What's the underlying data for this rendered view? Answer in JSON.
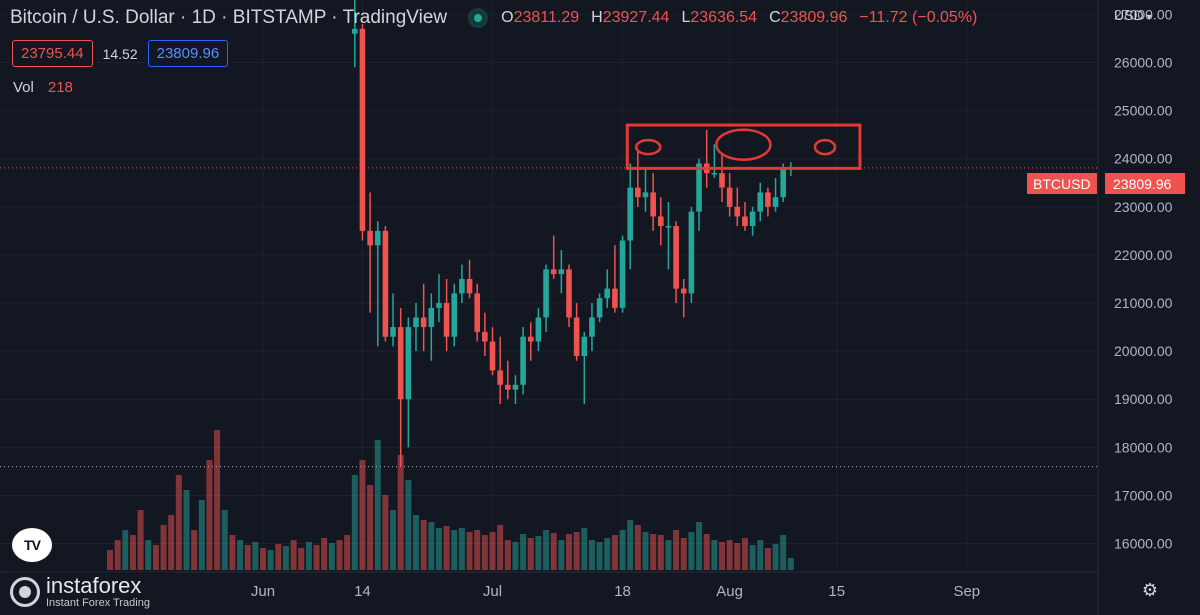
{
  "header": {
    "title": "Bitcoin / U.S. Dollar · 1D · BITSTAMP · TradingView",
    "ohlc": {
      "open_label": "O",
      "open": "23811.29",
      "high_label": "H",
      "high": "23927.44",
      "low_label": "L",
      "low": "23636.54",
      "close_label": "C",
      "close": "23809.96",
      "change": "−11.72 (−0.05%)"
    }
  },
  "trade": {
    "sell": "23795.44",
    "spread": "14.52",
    "buy": "23809.96"
  },
  "volume": {
    "label": "Vol",
    "value": "218"
  },
  "axis": {
    "currency": "USD"
  },
  "last_price": {
    "symbol": "BTCUSD",
    "price": "23809.96"
  },
  "watermark": {
    "name": "instaforex",
    "tagline": "Instant Forex Trading"
  },
  "icons": [
    "status-dot-icon",
    "chevron-down-icon",
    "tradingview-logo-icon",
    "instaforex-logo-icon",
    "gear-icon"
  ],
  "colors": {
    "up": "#26a69a",
    "down": "#ef5350",
    "background": "#131722",
    "annotation": "#e53935"
  },
  "chart_data": {
    "type": "candlestick",
    "timeframe": "1D",
    "y_ticks": [
      16000,
      17000,
      18000,
      19000,
      20000,
      21000,
      22000,
      23000,
      24000,
      25000,
      26000,
      27000
    ],
    "ylim": [
      15450,
      27300
    ],
    "x_ticks": [
      {
        "label": "Jun",
        "day": 0
      },
      {
        "label": "14",
        "day": 13
      },
      {
        "label": "Jul",
        "day": 30
      },
      {
        "label": "18",
        "day": 47
      },
      {
        "label": "Aug",
        "day": 61
      },
      {
        "label": "15",
        "day": 75
      },
      {
        "label": "Sep",
        "day": 92
      }
    ],
    "last_price_line": 23810,
    "low_reference_line": 17600,
    "resistance_zone": {
      "from_day": 45,
      "to_day": 63,
      "low": 23800,
      "high": 24700
    },
    "highlighted_tops": [
      {
        "day": 48,
        "price": 24200
      },
      {
        "day": 56,
        "price": 24250
      },
      {
        "day": 63,
        "price": 24200
      }
    ],
    "candles": [
      {
        "day": 12,
        "o": 26600,
        "h": 27600,
        "l": 25900,
        "c": 26700,
        "v": 95
      },
      {
        "day": 13,
        "o": 26700,
        "h": 26800,
        "l": 22300,
        "c": 22500,
        "v": 110
      },
      {
        "day": 14,
        "o": 22500,
        "h": 23300,
        "l": 20800,
        "c": 22200,
        "v": 85
      },
      {
        "day": 15,
        "o": 22200,
        "h": 22700,
        "l": 20100,
        "c": 22500,
        "v": 130
      },
      {
        "day": 16,
        "o": 22500,
        "h": 22600,
        "l": 20200,
        "c": 20300,
        "v": 75
      },
      {
        "day": 17,
        "o": 20300,
        "h": 21200,
        "l": 20100,
        "c": 20500,
        "v": 60
      },
      {
        "day": 18,
        "o": 20500,
        "h": 20900,
        "l": 17600,
        "c": 19000,
        "v": 115
      },
      {
        "day": 19,
        "o": 19000,
        "h": 20700,
        "l": 18000,
        "c": 20500,
        "v": 90
      },
      {
        "day": 20,
        "o": 20500,
        "h": 21000,
        "l": 20000,
        "c": 20700,
        "v": 55
      },
      {
        "day": 21,
        "o": 20700,
        "h": 21400,
        "l": 20000,
        "c": 20500,
        "v": 50
      },
      {
        "day": 22,
        "o": 20500,
        "h": 21200,
        "l": 19800,
        "c": 20900,
        "v": 48
      },
      {
        "day": 23,
        "o": 20900,
        "h": 21600,
        "l": 20600,
        "c": 21000,
        "v": 42
      },
      {
        "day": 24,
        "o": 21000,
        "h": 21500,
        "l": 20000,
        "c": 20300,
        "v": 44
      },
      {
        "day": 25,
        "o": 20300,
        "h": 21400,
        "l": 20100,
        "c": 21200,
        "v": 40
      },
      {
        "day": 26,
        "o": 21200,
        "h": 21800,
        "l": 21000,
        "c": 21500,
        "v": 42
      },
      {
        "day": 27,
        "o": 21500,
        "h": 21900,
        "l": 21100,
        "c": 21200,
        "v": 38
      },
      {
        "day": 28,
        "o": 21200,
        "h": 21400,
        "l": 20200,
        "c": 20400,
        "v": 40
      },
      {
        "day": 29,
        "o": 20400,
        "h": 20800,
        "l": 19900,
        "c": 20200,
        "v": 35
      },
      {
        "day": 30,
        "o": 20200,
        "h": 20500,
        "l": 19500,
        "c": 19600,
        "v": 38
      },
      {
        "day": 31,
        "o": 19600,
        "h": 20300,
        "l": 18900,
        "c": 19300,
        "v": 45
      },
      {
        "day": 32,
        "o": 19300,
        "h": 19800,
        "l": 19000,
        "c": 19200,
        "v": 30
      },
      {
        "day": 33,
        "o": 19200,
        "h": 19500,
        "l": 18900,
        "c": 19300,
        "v": 28
      },
      {
        "day": 34,
        "o": 19300,
        "h": 20500,
        "l": 19100,
        "c": 20300,
        "v": 36
      },
      {
        "day": 35,
        "o": 20300,
        "h": 20600,
        "l": 19800,
        "c": 20200,
        "v": 32
      },
      {
        "day": 36,
        "o": 20200,
        "h": 20900,
        "l": 20000,
        "c": 20700,
        "v": 34
      },
      {
        "day": 37,
        "o": 20700,
        "h": 21800,
        "l": 20400,
        "c": 21700,
        "v": 40
      },
      {
        "day": 38,
        "o": 21700,
        "h": 22400,
        "l": 21500,
        "c": 21600,
        "v": 37
      },
      {
        "day": 39,
        "o": 21600,
        "h": 22100,
        "l": 21200,
        "c": 21700,
        "v": 30
      },
      {
        "day": 40,
        "o": 21700,
        "h": 21800,
        "l": 20500,
        "c": 20700,
        "v": 36
      },
      {
        "day": 41,
        "o": 20700,
        "h": 21000,
        "l": 19800,
        "c": 19900,
        "v": 38
      },
      {
        "day": 42,
        "o": 19900,
        "h": 20400,
        "l": 18900,
        "c": 20300,
        "v": 42
      },
      {
        "day": 43,
        "o": 20300,
        "h": 21000,
        "l": 20000,
        "c": 20700,
        "v": 30
      },
      {
        "day": 44,
        "o": 20700,
        "h": 21200,
        "l": 20600,
        "c": 21100,
        "v": 28
      },
      {
        "day": 45,
        "o": 21100,
        "h": 21700,
        "l": 20900,
        "c": 21300,
        "v": 32
      },
      {
        "day": 46,
        "o": 21300,
        "h": 22200,
        "l": 20800,
        "c": 20900,
        "v": 35
      },
      {
        "day": 47,
        "o": 20900,
        "h": 22400,
        "l": 20800,
        "c": 22300,
        "v": 40
      },
      {
        "day": 48,
        "o": 22300,
        "h": 23900,
        "l": 21700,
        "c": 23400,
        "v": 50
      },
      {
        "day": 49,
        "o": 23400,
        "h": 24200,
        "l": 23000,
        "c": 23200,
        "v": 45
      },
      {
        "day": 50,
        "o": 23200,
        "h": 23800,
        "l": 22900,
        "c": 23300,
        "v": 38
      },
      {
        "day": 51,
        "o": 23300,
        "h": 23700,
        "l": 22500,
        "c": 22800,
        "v": 36
      },
      {
        "day": 52,
        "o": 22800,
        "h": 23200,
        "l": 22200,
        "c": 22600,
        "v": 35
      },
      {
        "day": 53,
        "o": 22600,
        "h": 23100,
        "l": 21700,
        "c": 22600,
        "v": 30
      },
      {
        "day": 54,
        "o": 22600,
        "h": 22700,
        "l": 21000,
        "c": 21300,
        "v": 40
      },
      {
        "day": 55,
        "o": 21300,
        "h": 21500,
        "l": 20700,
        "c": 21200,
        "v": 32
      },
      {
        "day": 56,
        "o": 21200,
        "h": 23000,
        "l": 21000,
        "c": 22900,
        "v": 38
      },
      {
        "day": 57,
        "o": 22900,
        "h": 24000,
        "l": 22500,
        "c": 23900,
        "v": 48
      },
      {
        "day": 58,
        "o": 23900,
        "h": 24600,
        "l": 23400,
        "c": 23700,
        "v": 36
      },
      {
        "day": 59,
        "o": 23700,
        "h": 24300,
        "l": 23600,
        "c": 23700,
        "v": 30
      },
      {
        "day": 60,
        "o": 23700,
        "h": 24100,
        "l": 23100,
        "c": 23400,
        "v": 28
      },
      {
        "day": 61,
        "o": 23400,
        "h": 23700,
        "l": 22800,
        "c": 23000,
        "v": 30
      },
      {
        "day": 62,
        "o": 23000,
        "h": 23400,
        "l": 22600,
        "c": 22800,
        "v": 27
      },
      {
        "day": 63,
        "o": 22800,
        "h": 23100,
        "l": 22500,
        "c": 22600,
        "v": 32
      },
      {
        "day": 64,
        "o": 22600,
        "h": 23000,
        "l": 22400,
        "c": 22900,
        "v": 25
      },
      {
        "day": 65,
        "o": 22900,
        "h": 23500,
        "l": 22700,
        "c": 23300,
        "v": 30
      },
      {
        "day": 66,
        "o": 23300,
        "h": 23400,
        "l": 22800,
        "c": 23000,
        "v": 22
      },
      {
        "day": 67,
        "o": 23000,
        "h": 23600,
        "l": 22900,
        "c": 23200,
        "v": 26
      },
      {
        "day": 68,
        "o": 23200,
        "h": 23900,
        "l": 23100,
        "c": 23800,
        "v": 35
      },
      {
        "day": 69,
        "o": 23800,
        "h": 23927,
        "l": 23637,
        "c": 23810,
        "v": 12
      }
    ],
    "early_volume": [
      {
        "day": -20,
        "v": 20,
        "up": false
      },
      {
        "day": -19,
        "v": 30,
        "up": false
      },
      {
        "day": -18,
        "v": 40,
        "up": true
      },
      {
        "day": -17,
        "v": 35,
        "up": false
      },
      {
        "day": -16,
        "v": 60,
        "up": false
      },
      {
        "day": -15,
        "v": 30,
        "up": true
      },
      {
        "day": -14,
        "v": 25,
        "up": false
      },
      {
        "day": -13,
        "v": 45,
        "up": false
      },
      {
        "day": -12,
        "v": 55,
        "up": false
      },
      {
        "day": -11,
        "v": 95,
        "up": false
      },
      {
        "day": -10,
        "v": 80,
        "up": true
      },
      {
        "day": -9,
        "v": 40,
        "up": false
      },
      {
        "day": -8,
        "v": 70,
        "up": true
      },
      {
        "day": -7,
        "v": 110,
        "up": false
      },
      {
        "day": -6,
        "v": 140,
        "up": false
      },
      {
        "day": -5,
        "v": 60,
        "up": true
      },
      {
        "day": -4,
        "v": 35,
        "up": false
      },
      {
        "day": -3,
        "v": 30,
        "up": true
      },
      {
        "day": -2,
        "v": 25,
        "up": false
      },
      {
        "day": -1,
        "v": 28,
        "up": true
      },
      {
        "day": 0,
        "v": 22,
        "up": false
      },
      {
        "day": 1,
        "v": 20,
        "up": true
      },
      {
        "day": 2,
        "v": 26,
        "up": false
      },
      {
        "day": 3,
        "v": 24,
        "up": true
      },
      {
        "day": 4,
        "v": 30,
        "up": false
      },
      {
        "day": 5,
        "v": 22,
        "up": false
      },
      {
        "day": 6,
        "v": 28,
        "up": true
      },
      {
        "day": 7,
        "v": 25,
        "up": false
      },
      {
        "day": 8,
        "v": 32,
        "up": false
      },
      {
        "day": 9,
        "v": 27,
        "up": true
      },
      {
        "day": 10,
        "v": 30,
        "up": false
      },
      {
        "day": 11,
        "v": 35,
        "up": false
      }
    ]
  }
}
